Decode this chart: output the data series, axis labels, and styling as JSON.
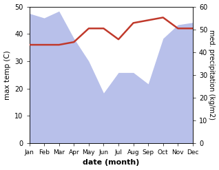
{
  "months": [
    "Jan",
    "Feb",
    "Mar",
    "Apr",
    "May",
    "Jun",
    "Jul",
    "Aug",
    "Sep",
    "Oct",
    "Nov",
    "Dec"
  ],
  "precipitation": [
    57,
    55,
    58,
    46,
    36,
    22,
    31,
    31,
    26,
    46,
    52,
    53
  ],
  "temperature": [
    36,
    36,
    36,
    37,
    42,
    42,
    38,
    44,
    45,
    46,
    42,
    42
  ],
  "temp_color": "#c0392b",
  "precip_color_fill": "#b8c0ea",
  "ylabel_left": "max temp (C)",
  "ylabel_right": "med. precipitation (kg/m2)",
  "xlabel": "date (month)",
  "ylim_left": [
    0,
    50
  ],
  "ylim_right": [
    0,
    60
  ],
  "yticks_left": [
    0,
    10,
    20,
    30,
    40,
    50
  ],
  "yticks_right": [
    0,
    10,
    20,
    30,
    40,
    50,
    60
  ]
}
